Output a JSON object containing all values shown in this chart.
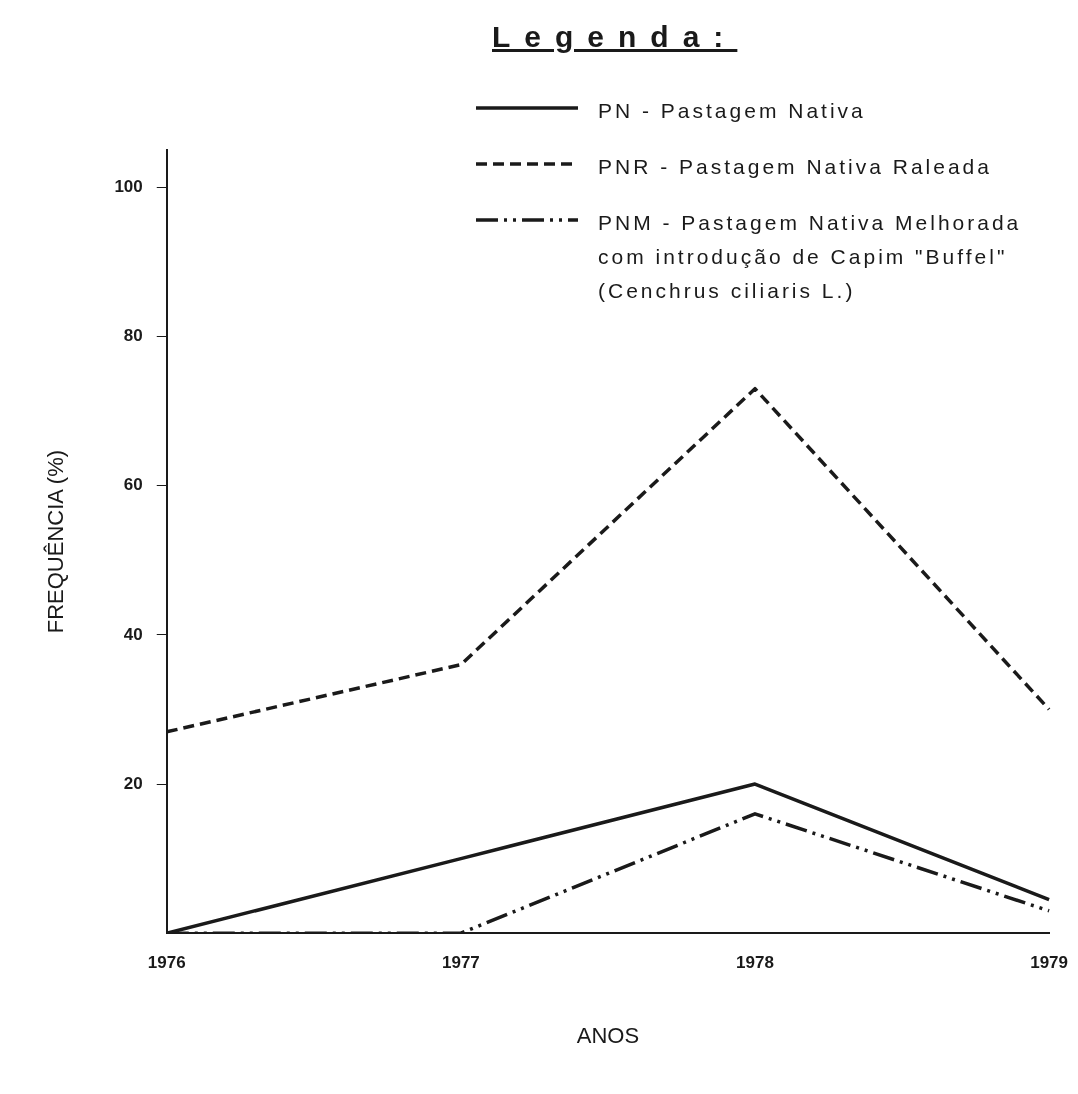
{
  "chart_data": {
    "type": "line",
    "xlabel": "ANOS",
    "ylabel": "FREQUÊNCIA (%)",
    "legend_title": "Legenda:",
    "legend": "top right",
    "marker": "none",
    "categories": [
      "1976",
      "1977",
      "1978",
      "1979"
    ],
    "ylim": [
      0,
      105
    ],
    "yticks": [
      20,
      40,
      60,
      80,
      100
    ],
    "series": [
      {
        "name": "PN - Pastagem Nativa",
        "color": "#1a1a1a",
        "line_style": "solid",
        "values": [
          0,
          10,
          20,
          4.5
        ]
      },
      {
        "name": "PNR - Pastagem Nativa Raleada",
        "color": "#1a1a1a",
        "line_style": "dashed",
        "values": [
          27,
          36,
          73,
          30
        ]
      },
      {
        "name": "PNM - Pastagem Nativa Melhorada com introdução de Capim \"Buffel\" (Cenchrus ciliaris L.)",
        "color": "#1a1a1a",
        "line_style": "dashdot",
        "values": [
          0,
          0,
          16,
          3
        ]
      }
    ]
  }
}
